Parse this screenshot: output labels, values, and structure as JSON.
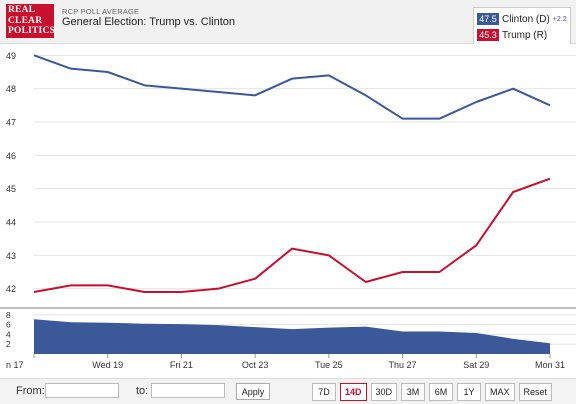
{
  "header": {
    "logo_lines": [
      "REAL",
      "CLEAR",
      "POLITICS"
    ],
    "subtitle": "RCP POLL AVERAGE",
    "title": "General Election: Trump vs. Clinton"
  },
  "legend": {
    "items": [
      {
        "value": "47.5",
        "name": "Clinton (D)",
        "spread": "+2.2",
        "color": "#3b5998"
      },
      {
        "value": "45.3",
        "name": "Trump (R)",
        "spread": "",
        "color": "#c8102e"
      }
    ]
  },
  "footer": {
    "from_label": "From:",
    "to_label": "to:",
    "apply_label": "Apply",
    "ranges": [
      "7D",
      "14D",
      "30D",
      "3M",
      "6M",
      "1Y",
      "MAX",
      "Reset"
    ],
    "active_range": "14D"
  },
  "chart_data": {
    "type": "line",
    "x": [
      "Oct 17",
      "Oct 18",
      "Oct 19",
      "Oct 20",
      "Oct 21",
      "Oct 22",
      "Oct 23",
      "Oct 24",
      "Oct 25",
      "Oct 26",
      "Oct 27",
      "Oct 28",
      "Oct 29",
      "Oct 30",
      "Oct 31"
    ],
    "x_ticks": [
      {
        "index": 0,
        "label": "n 17"
      },
      {
        "index": 2,
        "label": "Wed 19"
      },
      {
        "index": 4,
        "label": "Fri 21"
      },
      {
        "index": 6,
        "label": "Oct 23"
      },
      {
        "index": 8,
        "label": "Tue 25"
      },
      {
        "index": 10,
        "label": "Thu 27"
      },
      {
        "index": 12,
        "label": "Sat 29"
      },
      {
        "index": 14,
        "label": "Mon 31"
      }
    ],
    "series": [
      {
        "name": "Clinton (D)",
        "color": "#3b5998",
        "values": [
          49.0,
          48.6,
          48.5,
          48.1,
          48.0,
          47.9,
          47.8,
          48.3,
          48.4,
          47.8,
          47.1,
          47.1,
          47.6,
          48.0,
          47.5
        ]
      },
      {
        "name": "Trump (R)",
        "color": "#c8102e",
        "values": [
          41.9,
          42.1,
          42.1,
          41.9,
          41.9,
          42.0,
          42.3,
          43.2,
          43.0,
          42.2,
          42.5,
          42.5,
          43.3,
          44.9,
          45.3
        ]
      }
    ],
    "ylim": [
      41.6,
      49.1
    ],
    "y_ticks": [
      42,
      43,
      44,
      45,
      46,
      47,
      48,
      49
    ],
    "spread": {
      "type": "area",
      "color": "#3b5998",
      "values": [
        7.1,
        6.5,
        6.4,
        6.2,
        6.1,
        5.9,
        5.5,
        5.1,
        5.4,
        5.6,
        4.6,
        4.6,
        4.3,
        3.1,
        2.2
      ],
      "ylim": [
        0,
        9
      ],
      "y_ticks": [
        2,
        4,
        6,
        8
      ]
    },
    "grid": true
  }
}
